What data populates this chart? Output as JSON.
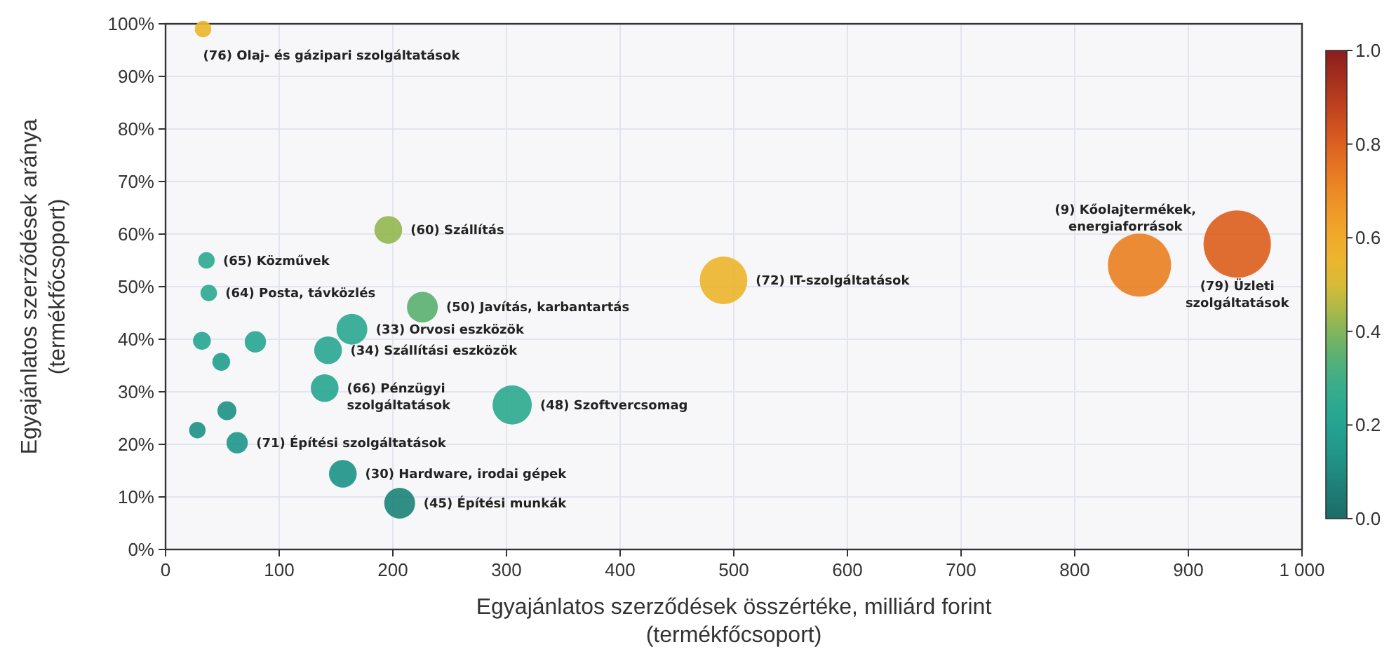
{
  "chart_data": {
    "type": "bubble",
    "xlabel": "Egyajánlatos szerződések összértéke, milliárd forint\n(termékfőcsoport)",
    "ylabel": "Egyajánlatos szerződések aránya\n(termékfőcsoport)",
    "xlim": [
      0,
      1000
    ],
    "xticks": [
      0,
      100,
      200,
      300,
      400,
      500,
      600,
      700,
      800,
      900,
      {
        "value": 1000,
        "label": "1 000"
      }
    ],
    "ylim": [
      0,
      100
    ],
    "yticks": [
      {
        "value": 0,
        "label": "0%"
      },
      {
        "value": 10,
        "label": "10%"
      },
      {
        "value": 20,
        "label": "20%"
      },
      {
        "value": 30,
        "label": "30%"
      },
      {
        "value": 40,
        "label": "40%"
      },
      {
        "value": 50,
        "label": "50%"
      },
      {
        "value": 60,
        "label": "60%"
      },
      {
        "value": 70,
        "label": "70%"
      },
      {
        "value": 80,
        "label": "80%"
      },
      {
        "value": 90,
        "label": "90%"
      },
      {
        "value": 100,
        "label": "100%"
      }
    ],
    "grid": true,
    "clim": [
      0,
      1
    ],
    "cticks": [
      {
        "value": 0,
        "label": "0.0"
      },
      {
        "value": 0.2,
        "label": "0.2"
      },
      {
        "value": 0.4,
        "label": "0.4"
      },
      {
        "value": 0.6,
        "label": "0.6"
      },
      {
        "value": 0.8,
        "label": "0.8"
      },
      {
        "value": 1,
        "label": "1.0"
      }
    ],
    "x": [
      33,
      36,
      38,
      32,
      79,
      49,
      54,
      28,
      63,
      196,
      226,
      164,
      143,
      140,
      305,
      156,
      206,
      491,
      857,
      943
    ],
    "values": [
      99,
      55,
      48.8,
      39.7,
      39.5,
      35.7,
      26.4,
      22.7,
      20.3,
      60.8,
      46.1,
      41.9,
      37.9,
      30.7,
      27.5,
      14.4,
      8.8,
      51.2,
      54.1,
      58.1
    ],
    "sizes": [
      0.06,
      0.06,
      0.06,
      0.07,
      0.1,
      0.07,
      0.08,
      0.06,
      0.1,
      0.17,
      0.21,
      0.21,
      0.17,
      0.17,
      0.34,
      0.17,
      0.21,
      0.5,
      0.88,
      1
    ],
    "cvalues": [
      0.55,
      0.25,
      0.25,
      0.22,
      0.22,
      0.18,
      0.13,
      0.13,
      0.15,
      0.42,
      0.35,
      0.24,
      0.23,
      0.22,
      0.25,
      0.14,
      0.08,
      0.55,
      0.72,
      0.8
    ],
    "annotations": [
      {
        "text": "(76) Olaj- és gázipari szolgáltatások",
        "x": 33,
        "y": 99
      },
      {
        "text": "(65) Közművek",
        "x": 36,
        "y": 55
      },
      {
        "text": "(64) Posta, távközlés",
        "x": 38,
        "y": 48.8
      },
      {
        "text": "(71) Építési szolgáltatások",
        "x": 63,
        "y": 20.3
      },
      {
        "text": "(60) Szállítás",
        "x": 196,
        "y": 60.8
      },
      {
        "text": "(50) Javítás, karbantartás",
        "x": 226,
        "y": 46.1
      },
      {
        "text": "(33) Orvosi eszközök",
        "x": 164,
        "y": 41.9
      },
      {
        "text": "(34) Szállítási eszközök",
        "x": 143,
        "y": 37.9
      },
      {
        "text": "(66) Pénzügyi\nszolgáltatások",
        "x": 140,
        "y": 30.7
      },
      {
        "text": "(48) Szoftvercsomag",
        "x": 305,
        "y": 27.5
      },
      {
        "text": "(30) Hardware, irodai gépek",
        "x": 156,
        "y": 14.4
      },
      {
        "text": "(45) Építési munkák",
        "x": 206,
        "y": 8.8
      },
      {
        "text": "(72) IT-szolgáltatások",
        "x": 491,
        "y": 51.2
      },
      {
        "text": "(9) Kőolajtermékek,\nenergiaforrások",
        "x": 857,
        "y": 54.1
      },
      {
        "text": "(79) Üzleti\nszolgáltatások",
        "x": 943,
        "y": 58.1
      }
    ]
  }
}
